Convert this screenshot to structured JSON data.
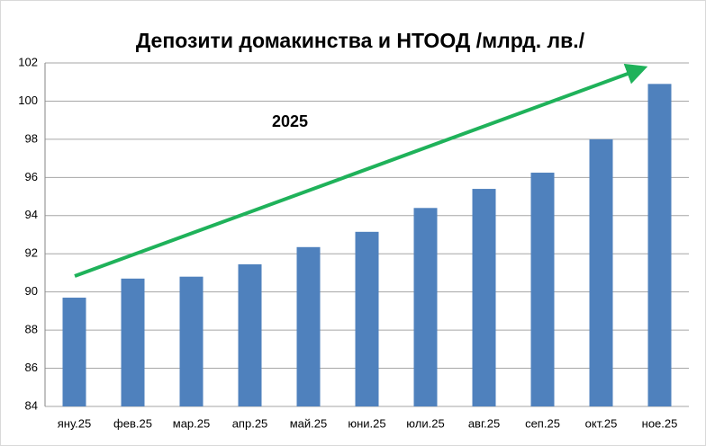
{
  "chart_data": {
    "type": "bar",
    "title": "Депозити домакинства и НТООД /млрд. лв./",
    "annotation": "2025",
    "categories": [
      "яну.25",
      "фев.25",
      "мар.25",
      "апр.25",
      "май.25",
      "юни.25",
      "юли.25",
      "авг.25",
      "сеп.25",
      "окт.25",
      "ное.25"
    ],
    "values": [
      89.7,
      90.7,
      90.8,
      91.45,
      92.35,
      93.15,
      94.4,
      95.4,
      96.25,
      98.0,
      100.9
    ],
    "color": "#4f81bd",
    "ylim": [
      84,
      102
    ],
    "yticks": [
      84,
      86,
      88,
      90,
      92,
      94,
      96,
      98,
      100,
      102
    ],
    "grid": true
  }
}
